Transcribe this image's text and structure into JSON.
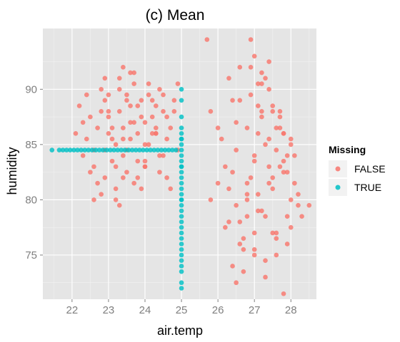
{
  "chart_data": {
    "type": "scatter",
    "title": "(c)  Mean",
    "xlabel": "air.temp",
    "ylabel": "humidity",
    "xlim": [
      21.2,
      28.7
    ],
    "ylim": [
      71.0,
      95.5
    ],
    "xticks": [
      22,
      23,
      24,
      25,
      26,
      27,
      28
    ],
    "yticks": [
      75,
      80,
      85,
      90
    ],
    "grid": true,
    "legend": {
      "title": "Missing",
      "position": "right",
      "entries": [
        {
          "label": "FALSE",
          "color": "#F8766D"
        },
        {
          "label": "TRUE",
          "color": "#00BFC4"
        }
      ]
    },
    "series": [
      {
        "name": "FALSE",
        "color": "#F8766D",
        "x": [
          22.1,
          22.3,
          22.5,
          22.6,
          22.8,
          22.9,
          23.0,
          23.1,
          23.2,
          23.3,
          23.4,
          23.5,
          23.6,
          23.7,
          23.8,
          23.9,
          24.0,
          24.1,
          24.2,
          24.3,
          24.4,
          24.5,
          24.6,
          24.7,
          24.8,
          24.9,
          22.2,
          22.4,
          22.7,
          23.0,
          23.3,
          23.5,
          23.8,
          24.0,
          24.3,
          24.6,
          24.9,
          22.5,
          22.8,
          23.1,
          23.4,
          23.7,
          24.0,
          24.4,
          24.7,
          22.3,
          22.9,
          23.2,
          23.6,
          24.1,
          24.5,
          22.6,
          23.0,
          23.4,
          23.9,
          24.3,
          22.4,
          22.8,
          23.3,
          23.7,
          24.2,
          22.7,
          23.2,
          23.5,
          24.0,
          24.5,
          22.9,
          23.4,
          23.8,
          24.4,
          23.1,
          23.6,
          24.1,
          22.6,
          23.3,
          23.9,
          24.6,
          23.0,
          23.5,
          24.2,
          23.7,
          24.8,
          23.2,
          22.9,
          23.6,
          24.3,
          23.4,
          24.0,
          23.8,
          25.7,
          25.8,
          26.0,
          26.2,
          26.3,
          26.5,
          26.6,
          26.7,
          26.8,
          26.9,
          27.0,
          27.1,
          27.2,
          27.3,
          27.4,
          27.5,
          27.6,
          27.7,
          27.8,
          27.9,
          28.0,
          28.1,
          28.2,
          28.3,
          26.4,
          26.7,
          27.0,
          27.3,
          27.6,
          27.9,
          28.2,
          26.5,
          26.8,
          27.1,
          27.4,
          27.7,
          28.0,
          26.3,
          26.6,
          26.9,
          27.2,
          27.5,
          27.8,
          28.1,
          26.4,
          26.8,
          27.1,
          27.4,
          27.7,
          28.0,
          26.2,
          26.6,
          27.0,
          27.3,
          27.6,
          27.9,
          26.5,
          26.9,
          27.2,
          27.5,
          27.8,
          26.7,
          27.0,
          27.3,
          27.6,
          28.0,
          26.8,
          27.2,
          27.5,
          27.9,
          26.4,
          27.1,
          27.4,
          27.7,
          26.6,
          27.0,
          27.3,
          26.9,
          27.2,
          27.6,
          27.0,
          27.4,
          26.5,
          27.8,
          28.5,
          26.1,
          26.3,
          27.1,
          27.8,
          25.8,
          26.0,
          26.8,
          27.5
        ],
        "y": [
          86.0,
          84.0,
          87.5,
          83.0,
          88.0,
          82.0,
          89.5,
          85.5,
          81.0,
          90.0,
          86.5,
          84.5,
          91.5,
          87.0,
          83.5,
          89.0,
          85.0,
          90.5,
          86.0,
          88.5,
          84.0,
          89.5,
          87.5,
          86.5,
          88.0,
          90.5,
          88.5,
          85.5,
          86.5,
          87.5,
          88.0,
          89.0,
          86.0,
          87.0,
          86.5,
          85.5,
          84.5,
          82.5,
          80.5,
          83.5,
          82.0,
          81.5,
          83.0,
          82.5,
          81.0,
          87.0,
          89.0,
          85.0,
          88.5,
          89.5,
          88.0,
          84.5,
          86.0,
          85.5,
          87.5,
          86.0,
          89.5,
          90.0,
          91.0,
          90.5,
          89.0,
          81.5,
          80.0,
          82.5,
          83.5,
          84.0,
          91.0,
          92.0,
          88.5,
          90.0,
          86.5,
          87.0,
          85.0,
          80.0,
          79.5,
          81.0,
          82.0,
          88.0,
          89.5,
          87.5,
          91.5,
          89.0,
          83.0,
          84.5,
          85.5,
          86.0,
          84.0,
          83.0,
          82.0,
          94.5,
          88.0,
          86.5,
          83.0,
          81.0,
          79.5,
          78.0,
          76.5,
          80.0,
          82.0,
          84.0,
          86.0,
          88.0,
          85.0,
          83.0,
          81.0,
          84.5,
          86.5,
          83.5,
          82.5,
          80.0,
          81.5,
          79.5,
          78.5,
          74.0,
          75.5,
          77.0,
          78.5,
          77.0,
          76.0,
          80.5,
          84.5,
          86.5,
          88.5,
          90.0,
          87.5,
          85.5,
          91.0,
          89.0,
          92.0,
          90.5,
          88.0,
          86.0,
          84.0,
          82.5,
          80.5,
          79.0,
          81.5,
          83.0,
          85.0,
          77.5,
          76.0,
          75.0,
          74.5,
          76.5,
          78.5,
          87.0,
          89.5,
          91.5,
          88.5,
          86.0,
          73.5,
          75.5,
          73.0,
          75.0,
          77.5,
          81.5,
          79.0,
          82.0,
          84.0,
          89.0,
          90.5,
          92.5,
          88.0,
          92.0,
          93.0,
          91.0,
          94.5,
          87.5,
          86.5,
          83.5,
          85.5,
          72.5,
          71.5,
          79.5,
          85.5,
          78.0,
          80.5,
          82.5,
          80.0,
          81.5,
          78.5,
          77.0
        ]
      },
      {
        "name": "TRUE",
        "color": "#00BFC4",
        "x": [
          21.45,
          21.65,
          21.75,
          21.85,
          21.95,
          22.05,
          22.15,
          22.25,
          22.35,
          22.45,
          22.55,
          22.65,
          22.75,
          22.85,
          22.95,
          23.05,
          23.15,
          23.25,
          23.35,
          23.45,
          23.55,
          23.65,
          23.75,
          23.85,
          23.95,
          24.05,
          24.15,
          24.25,
          24.35,
          24.45,
          24.55,
          24.65,
          24.75,
          24.85,
          25.0,
          25.0,
          25.0,
          25.0,
          25.0,
          25.0,
          25.0,
          25.0,
          25.0,
          25.0,
          25.0,
          25.0,
          25.0,
          25.0,
          25.0,
          25.0,
          25.0,
          25.0,
          25.0,
          25.0,
          25.0,
          25.0,
          25.0,
          25.0,
          25.0,
          25.0,
          25.0,
          25.0,
          25.0,
          25.0,
          25.0,
          25.0,
          25.0,
          25.0,
          25.0
        ],
        "y": [
          84.5,
          84.5,
          84.5,
          84.5,
          84.5,
          84.5,
          84.5,
          84.5,
          84.5,
          84.5,
          84.5,
          84.5,
          84.5,
          84.5,
          84.5,
          84.5,
          84.5,
          84.5,
          84.5,
          84.5,
          84.5,
          84.5,
          84.5,
          84.5,
          84.5,
          84.5,
          84.5,
          84.5,
          84.5,
          84.5,
          84.5,
          84.5,
          84.5,
          84.5,
          90.0,
          89.0,
          87.5,
          86.5,
          86.0,
          85.5,
          85.0,
          84.5,
          84.0,
          83.5,
          83.0,
          82.5,
          82.0,
          81.5,
          81.0,
          80.5,
          80.0,
          79.5,
          79.0,
          78.5,
          78.0,
          77.5,
          77.0,
          76.5,
          76.0,
          75.5,
          75.0,
          74.5,
          74.0,
          73.5,
          72.5,
          72.0,
          85.5,
          83.0,
          80.0
        ]
      }
    ]
  }
}
